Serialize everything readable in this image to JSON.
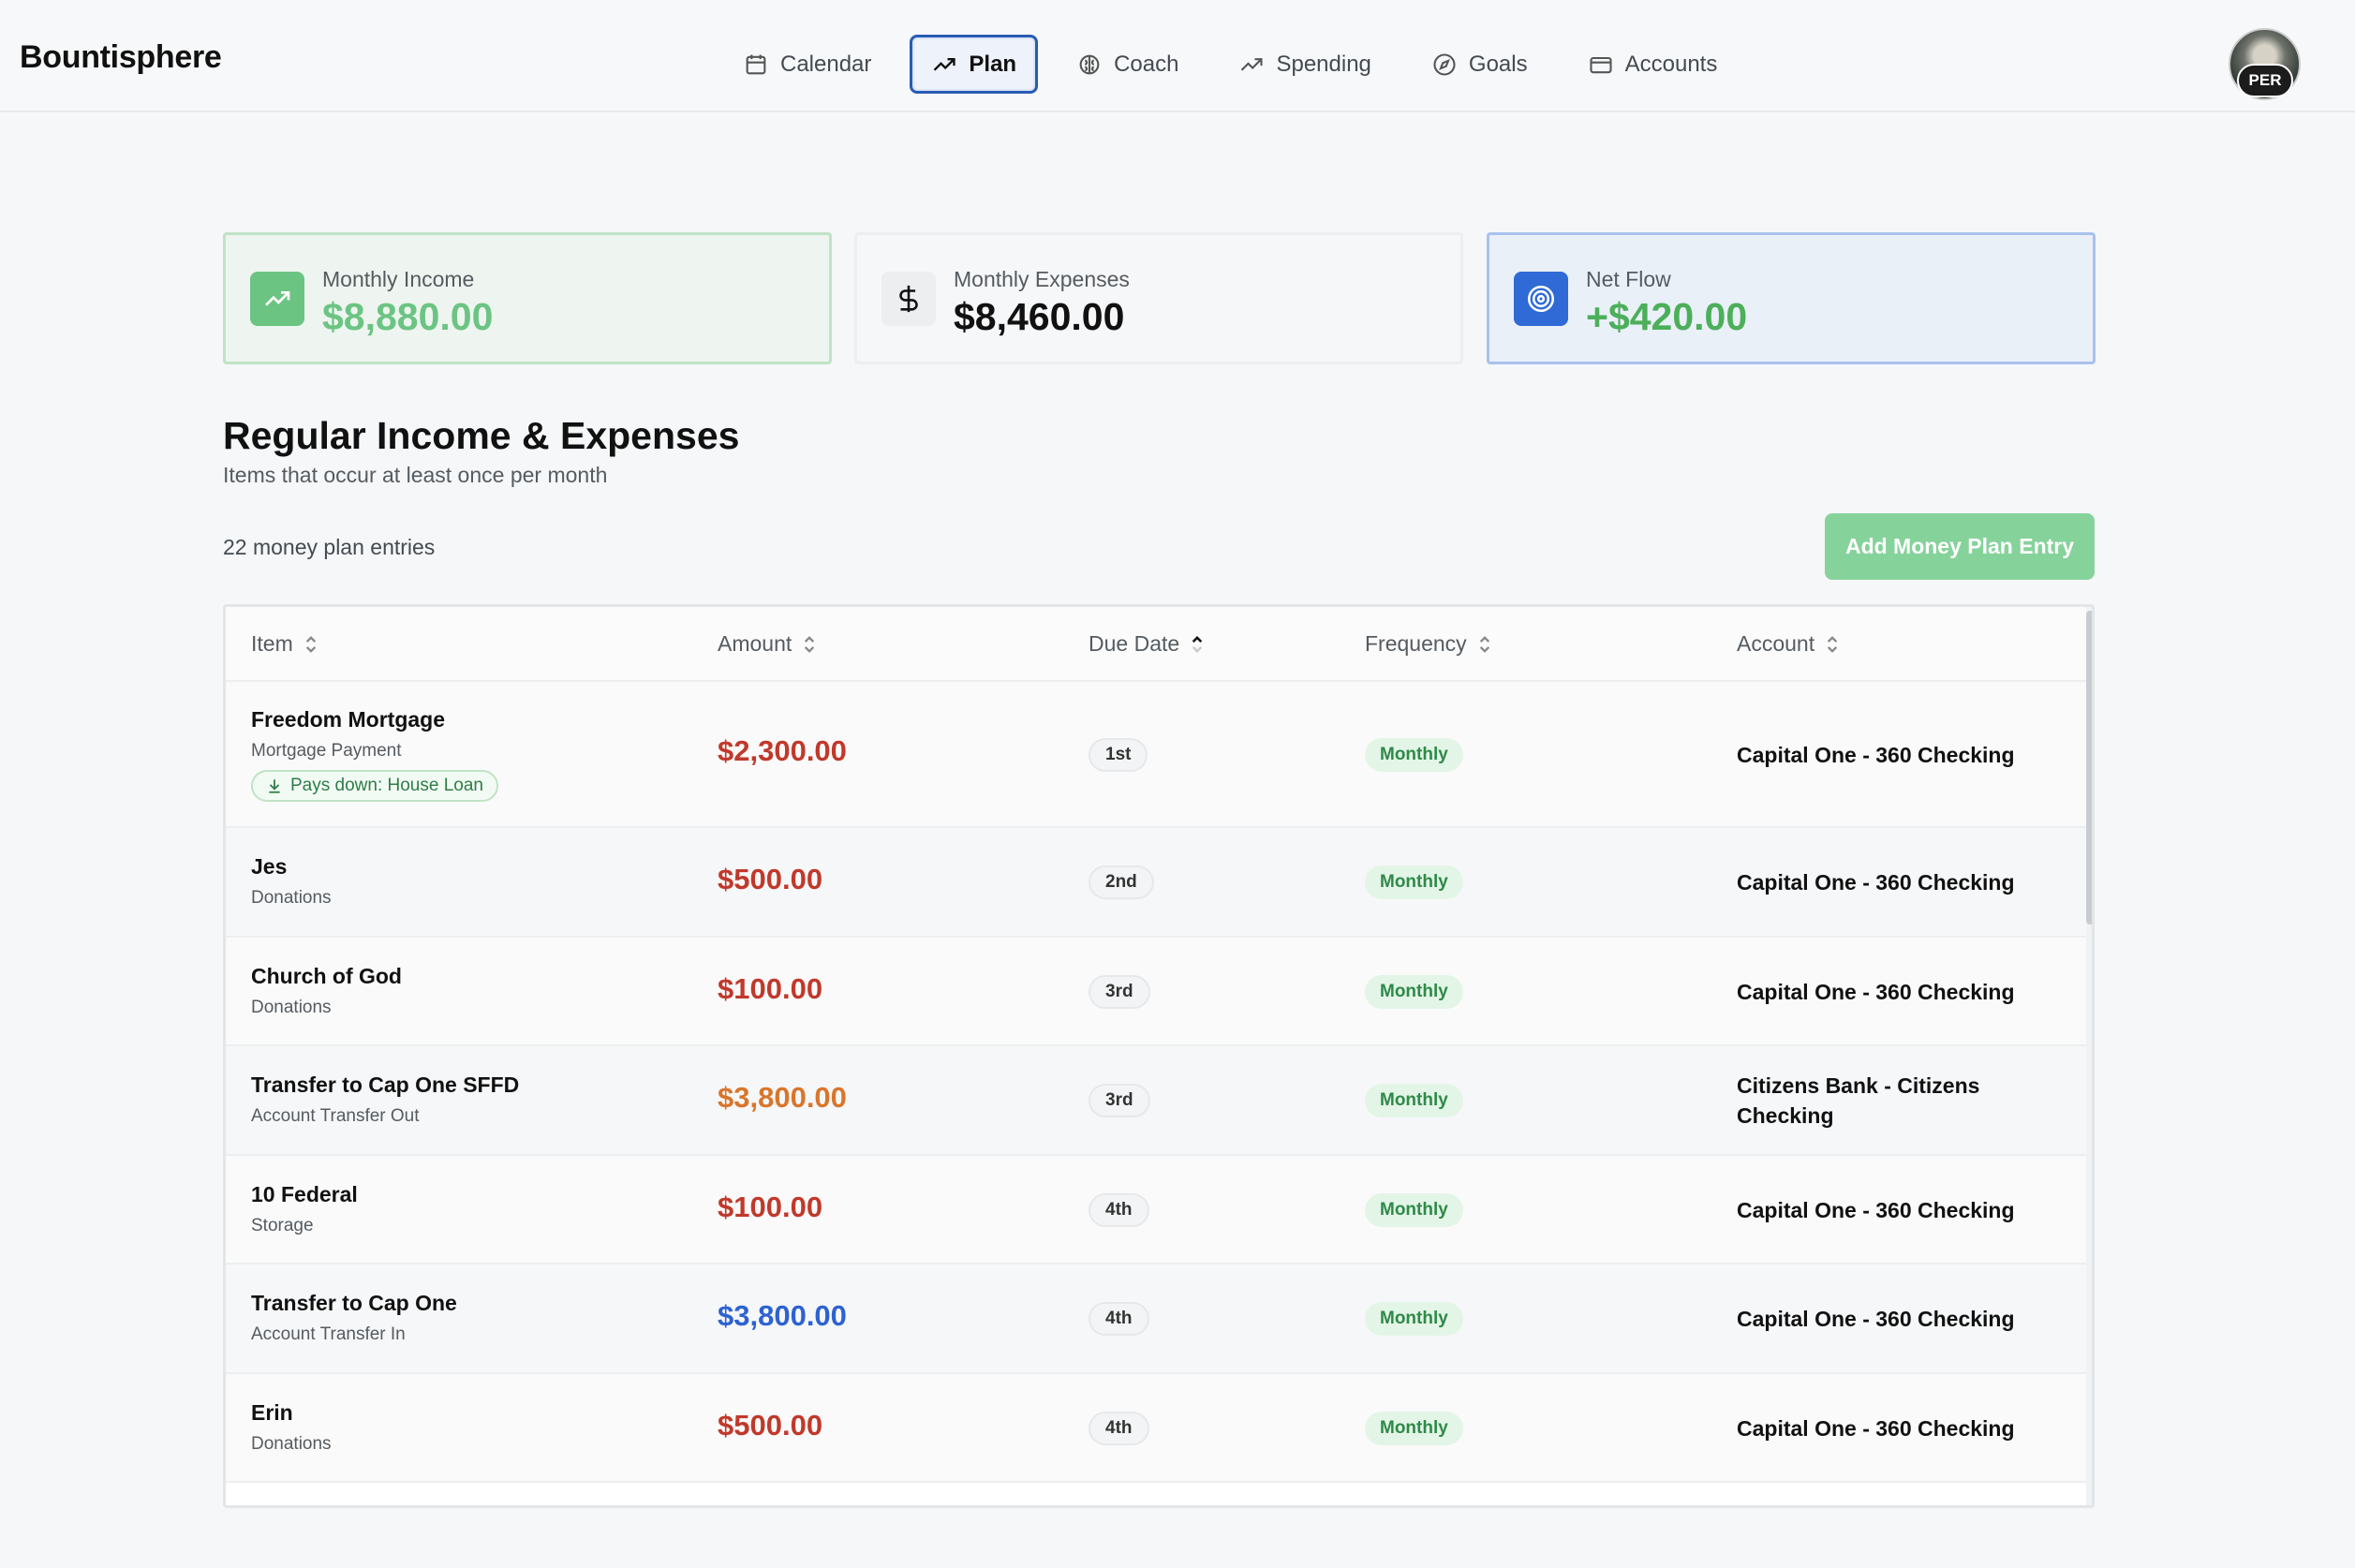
{
  "app": {
    "brand": "Bountisphere"
  },
  "nav": [
    {
      "label": "Calendar",
      "icon": "calendar-icon",
      "active": false
    },
    {
      "label": "Plan",
      "icon": "trending-up-icon",
      "active": true
    },
    {
      "label": "Coach",
      "icon": "brain-icon",
      "active": false
    },
    {
      "label": "Spending",
      "icon": "trending-up-icon",
      "active": false
    },
    {
      "label": "Goals",
      "icon": "compass-icon",
      "active": false
    },
    {
      "label": "Accounts",
      "icon": "credit-card-icon",
      "active": false
    }
  ],
  "user": {
    "badge": "PER"
  },
  "summary": {
    "income": {
      "label": "Monthly Income",
      "value": "$8,880.00",
      "icon": "trending-up-icon",
      "color": "#6cc483"
    },
    "expenses": {
      "label": "Monthly Expenses",
      "value": "$8,460.00",
      "icon": "dollar-icon"
    },
    "net": {
      "label": "Net Flow",
      "value": "+$420.00",
      "icon": "target-icon",
      "color": "#4caf5a"
    }
  },
  "section": {
    "title": "Regular Income & Expenses",
    "subtitle": "Items that occur at least once per month",
    "count": "22 money plan entries",
    "add_button": "Add Money Plan Entry"
  },
  "table": {
    "columns": [
      "Item",
      "Amount",
      "Due Date",
      "Frequency",
      "Account"
    ],
    "sorted_column": "Due Date",
    "rows": [
      {
        "name": "Freedom Mortgage",
        "category": "Mortgage Payment",
        "paysdown": "Pays down: House Loan",
        "amount": "$2,300.00",
        "type": "expense",
        "due": "1st",
        "frequency": "Monthly",
        "account": "Capital One - 360 Checking"
      },
      {
        "name": "Jes",
        "category": "Donations",
        "amount": "$500.00",
        "type": "expense",
        "due": "2nd",
        "frequency": "Monthly",
        "account": "Capital One - 360 Checking"
      },
      {
        "name": "Church of God",
        "category": "Donations",
        "amount": "$100.00",
        "type": "expense",
        "due": "3rd",
        "frequency": "Monthly",
        "account": "Capital One - 360 Checking"
      },
      {
        "name": "Transfer to Cap One SFFD",
        "category": "Account Transfer Out",
        "amount": "$3,800.00",
        "type": "transfer-out",
        "due": "3rd",
        "frequency": "Monthly",
        "account": "Citizens Bank - Citizens Checking"
      },
      {
        "name": "10 Federal",
        "category": "Storage",
        "amount": "$100.00",
        "type": "expense",
        "due": "4th",
        "frequency": "Monthly",
        "account": "Capital One - 360 Checking"
      },
      {
        "name": "Transfer to Cap One",
        "category": "Account Transfer In",
        "amount": "$3,800.00",
        "type": "transfer-in",
        "due": "4th",
        "frequency": "Monthly",
        "account": "Capital One - 360 Checking"
      },
      {
        "name": "Erin",
        "category": "Donations",
        "amount": "$500.00",
        "type": "expense",
        "due": "4th",
        "frequency": "Monthly",
        "account": "Capital One - 360 Checking"
      }
    ]
  },
  "colors": {
    "expense": "#c0392b",
    "transfer_out": "#d9762b",
    "transfer_in": "#2d62d1",
    "accent": "#2a5bb5"
  }
}
